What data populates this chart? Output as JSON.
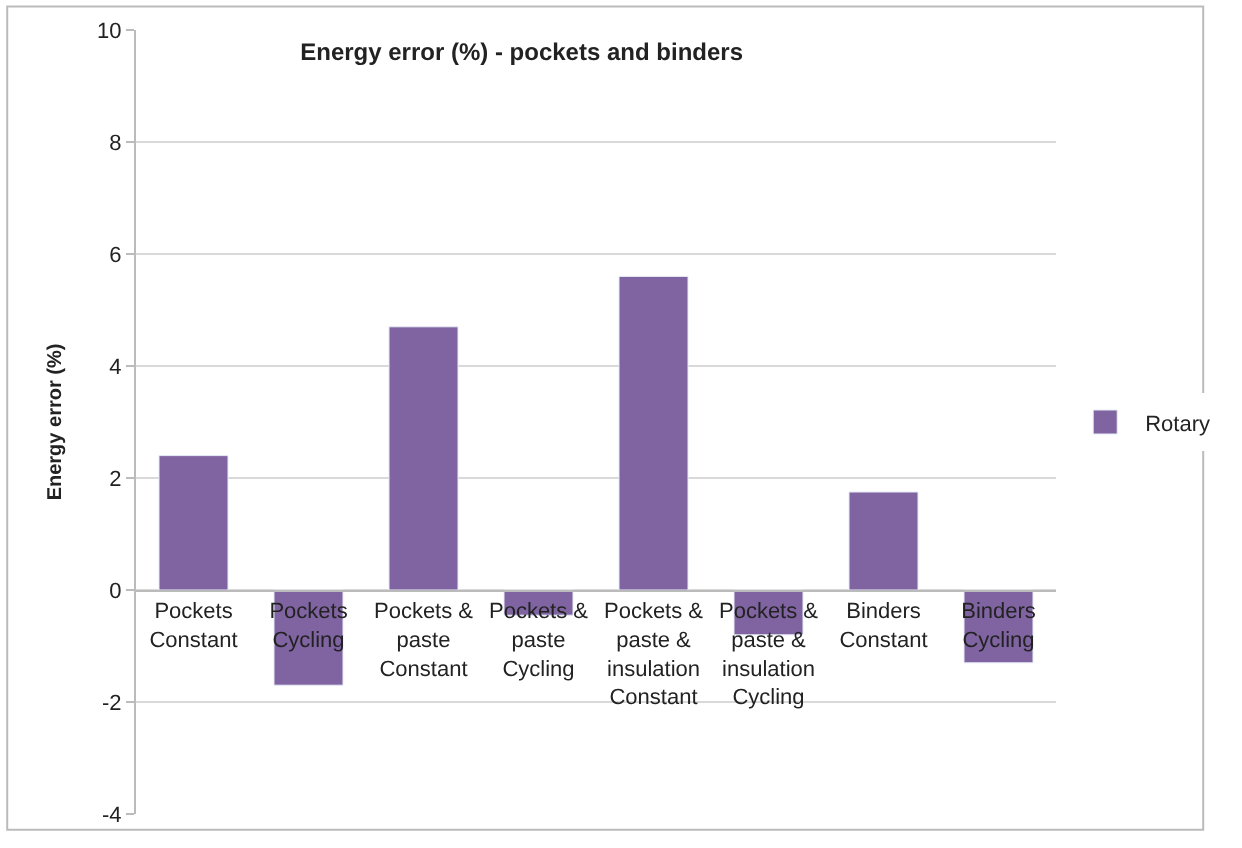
{
  "chart_data": {
    "type": "bar",
    "title": "Energy error (%) - pockets and binders",
    "ylabel": "Energy error (%)",
    "categories": [
      "Pockets Constant",
      "Pockets Cycling",
      "Pockets & paste Constant",
      "Pockets & paste Cycling",
      "Pockets & paste & insulation Constant",
      "Pockets & paste & insulation Cycling",
      "Binders Constant",
      "Binders Cycling"
    ],
    "series": [
      {
        "name": "Rotary",
        "color": "#8064a2",
        "values": [
          2.4,
          -1.7,
          4.7,
          -0.45,
          5.6,
          -0.8,
          1.75,
          -1.3
        ]
      }
    ],
    "ylim": [
      -4,
      10
    ],
    "yticks": [
      -4,
      -2,
      0,
      2,
      4,
      6,
      8,
      10
    ],
    "grid": "y",
    "legend": "right"
  }
}
